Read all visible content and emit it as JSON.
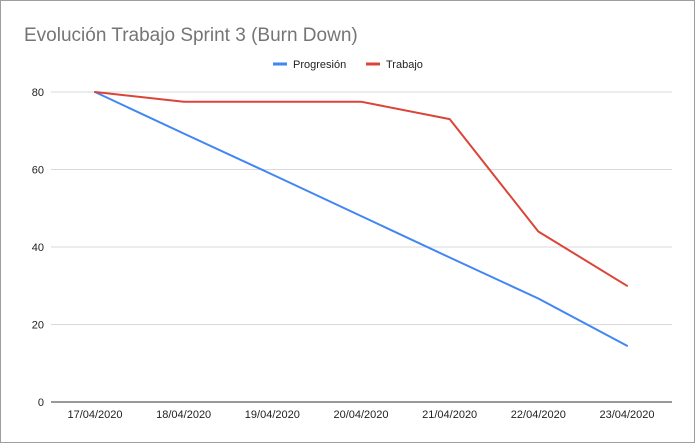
{
  "chart_data": {
    "type": "line",
    "title": "Evolución Trabajo Sprint 3 (Burn Down)",
    "xlabel": "",
    "ylabel": "",
    "categories": [
      "17/04/2020",
      "18/04/2020",
      "19/04/2020",
      "20/04/2020",
      "21/04/2020",
      "22/04/2020",
      "23/04/2020"
    ],
    "ylim": [
      0,
      80
    ],
    "yticks": [
      0,
      20,
      40,
      60,
      80
    ],
    "grid": true,
    "legend_position": "top-center",
    "series": [
      {
        "name": "Progresión",
        "color": "#4285f4",
        "values": [
          80,
          69.3,
          58.7,
          48,
          37.3,
          26.7,
          14.5
        ]
      },
      {
        "name": "Trabajo",
        "color": "#db4437",
        "values": [
          80,
          77.5,
          77.5,
          77.5,
          73,
          44,
          30
        ]
      }
    ]
  }
}
